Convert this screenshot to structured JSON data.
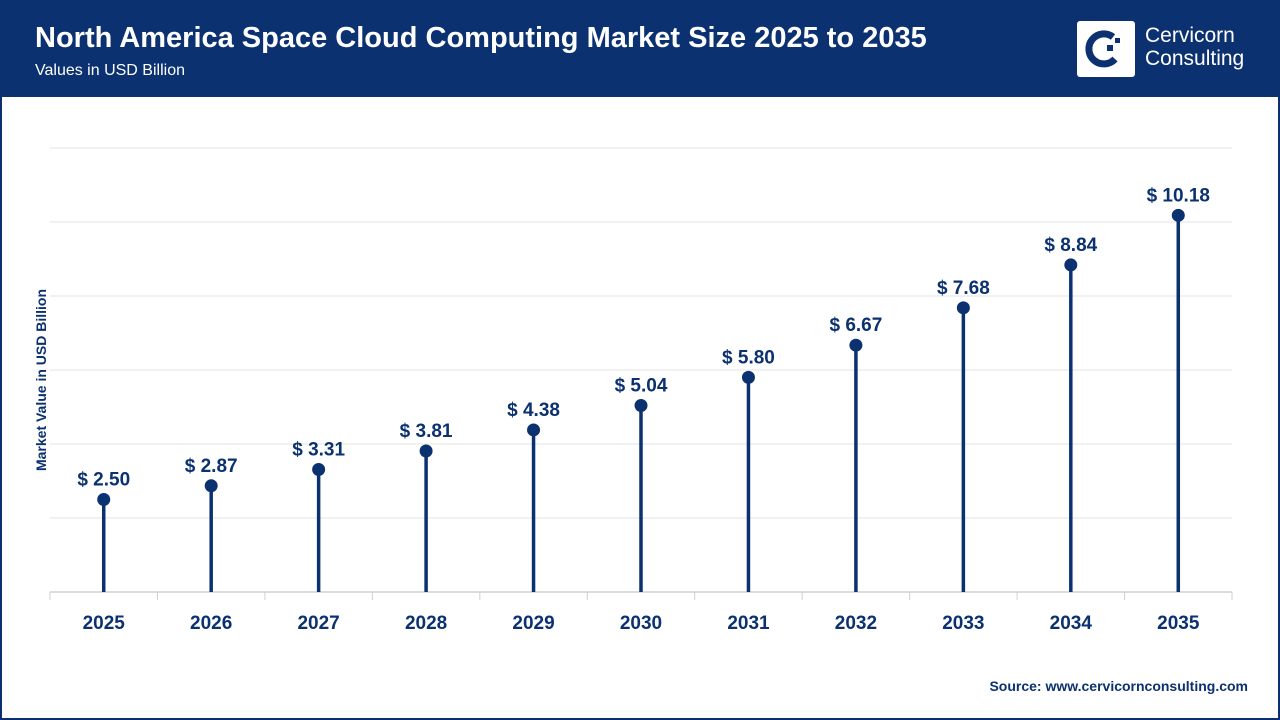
{
  "header": {
    "title": "North America Space Cloud Computing Market Size 2025 to 2035",
    "subtitle": "Values in USD Billion",
    "logo_text_line1": "Cervicorn",
    "logo_text_line2": "Consulting"
  },
  "source": "Source: www.cervicornconsulting.com",
  "colors": {
    "primary": "#0b3170",
    "grid": "#e3e3e3"
  },
  "chart_data": {
    "type": "lollipop",
    "title": "North America Space Cloud Computing Market Size 2025 to 2035",
    "subtitle": "Values in USD Billion",
    "xlabel": "",
    "ylabel": "Market Value in USD Billion",
    "ylim": [
      0,
      12
    ],
    "grid": true,
    "categories": [
      "2025",
      "2026",
      "2027",
      "2028",
      "2029",
      "2030",
      "2031",
      "2032",
      "2033",
      "2034",
      "2035"
    ],
    "values": [
      2.5,
      2.87,
      3.31,
      3.81,
      4.38,
      5.04,
      5.8,
      6.67,
      7.68,
      8.84,
      10.18
    ],
    "data_labels": [
      "$ 2.50",
      "$ 2.87",
      "$ 3.31",
      "$ 3.81",
      "$ 4.38",
      "$ 5.04",
      "$ 5.80",
      "$ 6.67",
      "$ 7.68",
      "$ 8.84",
      "$ 10.18"
    ]
  }
}
